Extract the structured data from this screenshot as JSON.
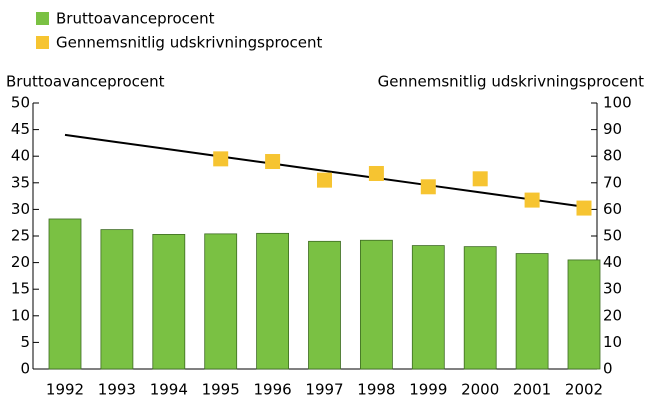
{
  "chart_data": {
    "type": "bar_line",
    "y_label": "Bruttoavanceprocent",
    "y2_label": "Gennemsnitlig udskrivningsprocent",
    "categories": [
      "1992",
      "1993",
      "1994",
      "1995",
      "1996",
      "1997",
      "1998",
      "1999",
      "2000",
      "2001",
      "2002"
    ],
    "series": [
      {
        "name": "Bruttoavanceprocent",
        "color": "#7ac143",
        "kind": "bar",
        "values": [
          28.2,
          26.2,
          25.3,
          25.4,
          25.5,
          24.0,
          24.2,
          23.2,
          23.0,
          21.7,
          20.5
        ]
      },
      {
        "name": "Gennemsnitlig udskrivningsprocent",
        "color": "#f6c431",
        "kind": "marker",
        "axis": "y2",
        "values": [
          null,
          null,
          null,
          79,
          78,
          71,
          73.5,
          68.5,
          71.5,
          63.5,
          60.5
        ]
      },
      {
        "color": "#000000",
        "kind": "line",
        "axis": "y2",
        "values": [
          88,
          85.3,
          82.6,
          79.9,
          77.2,
          74.5,
          71.8,
          69.1,
          66.4,
          63.7,
          61
        ]
      }
    ],
    "ylim": [
      0,
      50
    ],
    "yticks": [
      0,
      5,
      10,
      15,
      20,
      25,
      30,
      35,
      40,
      45,
      50
    ],
    "y2lim": [
      0,
      100
    ],
    "y2ticks": [
      0,
      10,
      20,
      30,
      40,
      50,
      60,
      70,
      80,
      90,
      100
    ],
    "legend": "top-left"
  }
}
